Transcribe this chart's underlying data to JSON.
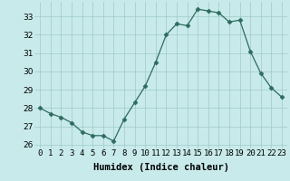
{
  "x": [
    0,
    1,
    2,
    3,
    4,
    5,
    6,
    7,
    8,
    9,
    10,
    11,
    12,
    13,
    14,
    15,
    16,
    17,
    18,
    19,
    20,
    21,
    22,
    23
  ],
  "y": [
    28.0,
    27.7,
    27.5,
    27.2,
    26.7,
    26.5,
    26.5,
    26.2,
    27.4,
    28.3,
    29.2,
    30.5,
    32.0,
    32.6,
    32.5,
    33.4,
    33.3,
    33.2,
    32.7,
    32.8,
    31.1,
    29.9,
    29.1,
    28.6
  ],
  "line_color": "#2e6b5e",
  "marker": "D",
  "marker_size": 2.5,
  "bg_color": "#c8eaea",
  "grid_color": "#a0c8c8",
  "xlabel": "Humidex (Indice chaleur)",
  "ylim": [
    25.8,
    33.8
  ],
  "xlim": [
    -0.5,
    23.5
  ],
  "yticks": [
    26,
    27,
    28,
    29,
    30,
    31,
    32,
    33
  ],
  "xtick_labels": [
    "0",
    "1",
    "2",
    "3",
    "4",
    "5",
    "6",
    "7",
    "8",
    "9",
    "10",
    "11",
    "12",
    "13",
    "14",
    "15",
    "16",
    "17",
    "18",
    "19",
    "20",
    "21",
    "22",
    "23"
  ],
  "tick_fontsize": 6.5,
  "xlabel_fontsize": 7.5
}
